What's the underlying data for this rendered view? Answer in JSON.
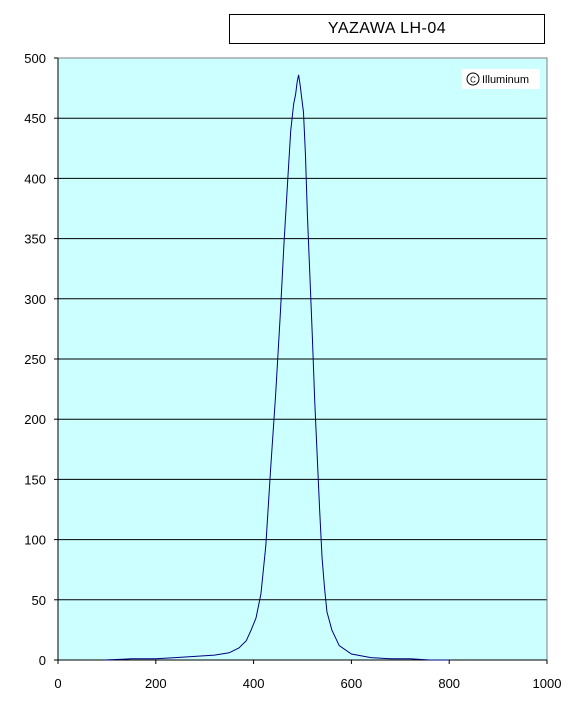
{
  "chart_data": {
    "type": "line",
    "title": "YAZAWA LH-04",
    "watermark": "Illuminum",
    "xlabel": "",
    "ylabel": "",
    "xlim": [
      0,
      1000
    ],
    "ylim": [
      0,
      500
    ],
    "x_ticks": [
      0,
      200,
      400,
      600,
      800,
      1000
    ],
    "y_ticks": [
      0,
      50,
      100,
      150,
      200,
      250,
      300,
      350,
      400,
      450,
      500
    ],
    "grid": "horizontal",
    "background_color": "#ccffff",
    "line_color": "#000080",
    "series": [
      {
        "x": [
          95,
          150,
          200,
          240,
          280,
          320,
          350,
          370,
          385,
          395,
          405,
          415,
          425,
          435,
          445,
          455,
          462,
          470,
          476,
          482,
          486,
          489,
          492,
          495,
          498,
          502,
          506,
          510,
          515,
          520,
          525,
          530,
          535,
          540,
          545,
          550,
          560,
          575,
          600,
          640,
          680,
          720,
          760,
          800
        ],
        "y": [
          0,
          1,
          1,
          2,
          3,
          4,
          6,
          10,
          16,
          25,
          35,
          55,
          95,
          160,
          220,
          290,
          345,
          400,
          440,
          462,
          470,
          480,
          486,
          478,
          468,
          455,
          420,
          370,
          320,
          270,
          215,
          170,
          125,
          85,
          60,
          40,
          25,
          12,
          5,
          2,
          1,
          1,
          0,
          0
        ]
      }
    ]
  }
}
